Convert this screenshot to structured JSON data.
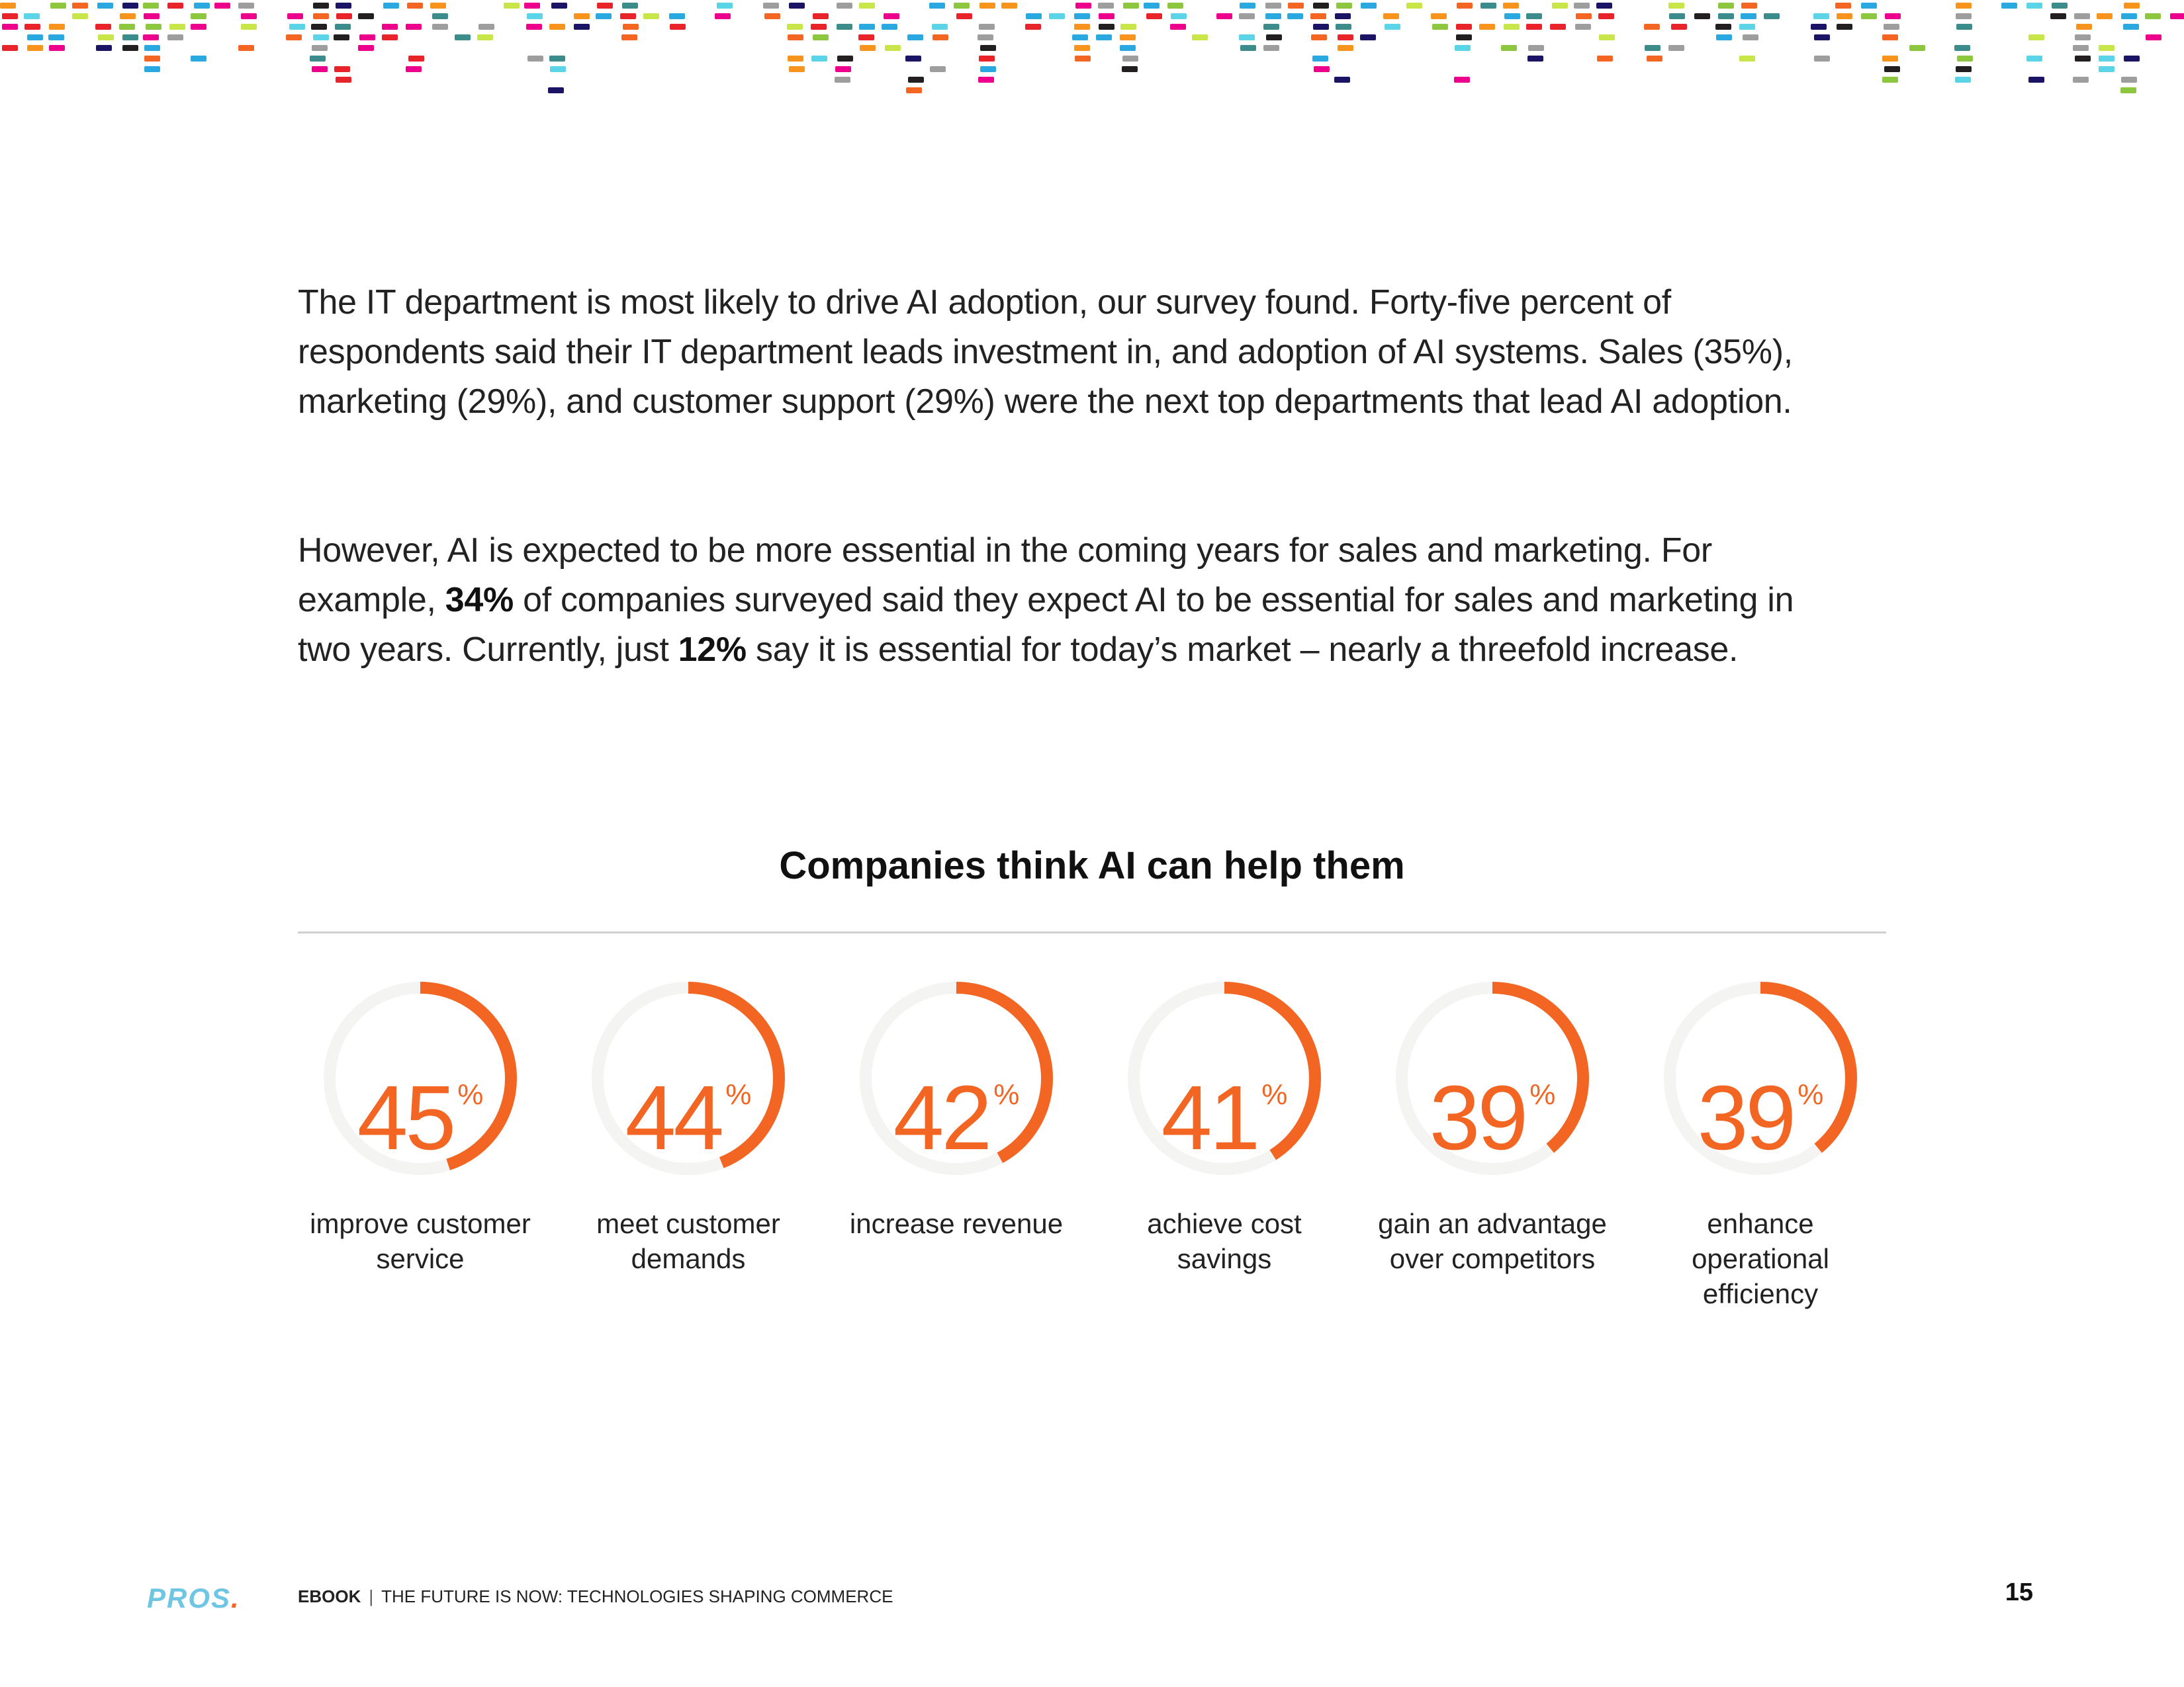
{
  "colors": {
    "accent": "#f26522",
    "ring_track": "#f4f4f2",
    "logo": "#6ec6e3",
    "confetti": [
      "#e8242a",
      "#2aa8e0",
      "#f7941d",
      "#8dc63f",
      "#ec008c",
      "#1b1464",
      "#5ad4e6",
      "#c8e64a",
      "#231f20",
      "#9e9e9e",
      "#f26522",
      "#3c8c8c"
    ]
  },
  "content": {
    "paragraph_1": "The IT department is most likely to drive AI adoption, our survey found. Forty-five percent of respondents said their IT department leads investment in, and adoption of AI systems. Sales (35%), marketing (29%), and customer support (29%) were the next top departments that lead AI adoption.",
    "paragraph_2": {
      "part_1": "However, AI is expected to be more essential in the coming years for sales and marketing. For example, ",
      "highlight_1": "34%",
      "part_2": " of companies surveyed said they expect AI to be essential for sales and marketing in two years. Currently, just ",
      "highlight_2": "12%",
      "part_3": " say it is essential for today’s market – nearly a threefold increase."
    }
  },
  "chart_data": {
    "type": "radial-progress",
    "title": "Companies think AI can help them",
    "unit": "%",
    "items": [
      {
        "value": 45,
        "label": "improve customer service"
      },
      {
        "value": 44,
        "label": "meet customer demands"
      },
      {
        "value": 42,
        "label": "increase revenue"
      },
      {
        "value": 41,
        "label": "achieve cost savings"
      },
      {
        "value": 39,
        "label": "gain an advantage over competitors"
      },
      {
        "value": 39,
        "label": "enhance operational efficiency"
      }
    ]
  },
  "footer": {
    "logo_text": "PROS",
    "logo_dot": ".",
    "ebook_label": "EBOOK",
    "separator": "|",
    "book_title": "THE FUTURE IS NOW: TECHNOLOGIES SHAPING COMMERCE",
    "page_number": "15"
  }
}
